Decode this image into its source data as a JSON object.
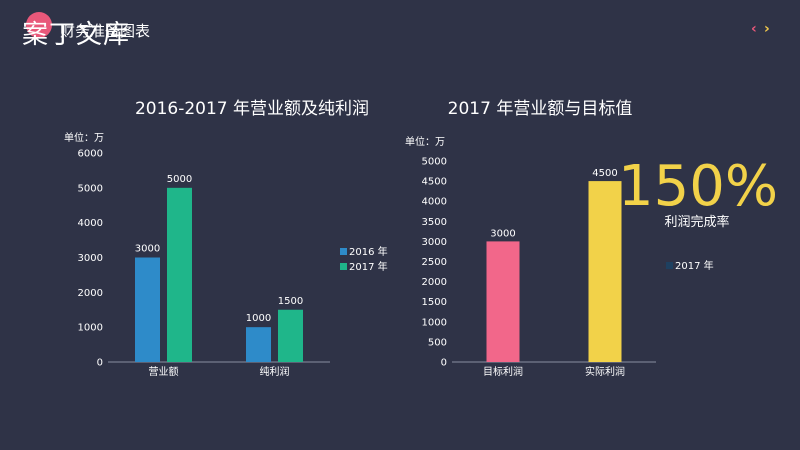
{
  "header": {
    "watermark": "案丁文库",
    "title": "财务准备图表",
    "nav_prev": "‹",
    "nav_next": "›",
    "logo_icon": "logo-circle-icon"
  },
  "highlight": {
    "value": "150%",
    "label": "利润完成率",
    "color": "#f2d249"
  },
  "chart_data": [
    {
      "type": "bar",
      "title": "2016-2017 年营业额及纯利润",
      "unit": "单位：万",
      "categories": [
        "营业额",
        "纯利润"
      ],
      "series": [
        {
          "name": "2016 年",
          "color": "#2e8bc9",
          "values": [
            3000,
            1000
          ]
        },
        {
          "name": "2017 年",
          "color": "#1fb68a",
          "values": [
            5000,
            1500
          ]
        }
      ],
      "ylim": [
        0,
        6000
      ],
      "yticks": [
        0,
        1000,
        2000,
        3000,
        4000,
        5000,
        6000
      ],
      "grid": false,
      "legend": "right"
    },
    {
      "type": "bar",
      "title": "2017 年营业额与目标值",
      "unit": "单位：万",
      "categories": [
        "目标利润",
        "实际利润"
      ],
      "values": [
        3000,
        4500
      ],
      "colors": [
        "#f2678a",
        "#f2d249"
      ],
      "ylim": [
        0,
        5000
      ],
      "yticks": [
        0,
        500,
        1000,
        1500,
        2000,
        2500,
        3000,
        3500,
        4000,
        4500,
        5000
      ],
      "grid": false,
      "legend": "right",
      "legend_entries": [
        {
          "name": "2017 年",
          "color": "#1e4060"
        }
      ]
    }
  ]
}
